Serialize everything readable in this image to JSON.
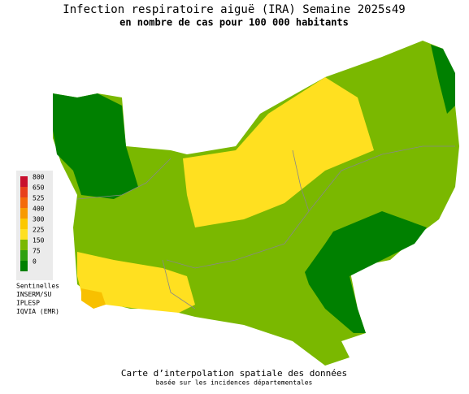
{
  "header": {
    "title": "Infection respiratoire aiguë (IRA) Semaine 2025s49",
    "subtitle": "en nombre de cas pour 100 000 habitants"
  },
  "legend": {
    "items": [
      {
        "label": "800",
        "color": "#c8102e"
      },
      {
        "label": "650",
        "color": "#e8401c"
      },
      {
        "label": "525",
        "color": "#f46a0a"
      },
      {
        "label": "400",
        "color": "#f89a00"
      },
      {
        "label": "300",
        "color": "#fcc800"
      },
      {
        "label": "225",
        "color": "#ffe020"
      },
      {
        "label": "150",
        "color": "#7ab800"
      },
      {
        "label": "75",
        "color": "#2ea010"
      },
      {
        "label": "0",
        "color": "#008000"
      }
    ]
  },
  "sources": [
    "Sentinelles",
    "INSERM/SU",
    "IPLESP",
    "IQVIA (EMR)"
  ],
  "footer": {
    "line1": "Carte d’interpolation spatiale des données",
    "line2": "basée sur les incidences départementales"
  }
}
